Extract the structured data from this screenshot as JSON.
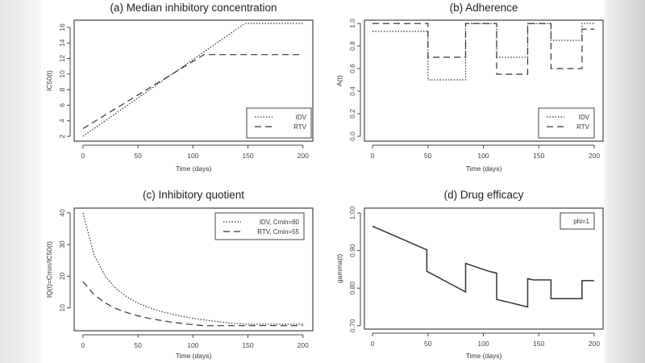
{
  "chart_data": [
    {
      "id": "a",
      "type": "line",
      "title": "(a) Median inhibitory concentration",
      "xlabel": "Time (days)",
      "ylabel": "IC50(t)",
      "xlim": [
        -8,
        209
      ],
      "ylim": [
        1.38,
        16.93
      ],
      "xticks": [
        0,
        50,
        100,
        150,
        200
      ],
      "yticks": [
        2,
        4,
        6,
        8,
        10,
        12,
        14,
        16
      ],
      "ytick_labels": [
        "2",
        "4",
        "6",
        "8",
        "10",
        "12",
        "14",
        "16"
      ],
      "grid": false,
      "legend_placement": "bottom-right",
      "series": [
        {
          "name": "IDV",
          "style": "dotted",
          "x": [
            0,
            147,
            200
          ],
          "y": [
            2,
            16.5,
            16.5
          ]
        },
        {
          "name": "RTV",
          "style": "dashed",
          "x": [
            0,
            110,
            200
          ],
          "y": [
            3,
            12.5,
            12.5
          ]
        }
      ]
    },
    {
      "id": "b",
      "type": "line",
      "title": "(b) Adherence",
      "xlabel": "Time (days)",
      "ylabel": "A(t)",
      "xlim": [
        -7.3,
        208
      ],
      "ylim": [
        -0.043,
        1.029
      ],
      "xticks": [
        0,
        50,
        100,
        150,
        200
      ],
      "yticks": [
        0,
        0.2,
        0.4,
        0.6,
        0.8,
        1.0
      ],
      "ytick_labels": [
        "0.0",
        "0.2",
        "0.4",
        "0.6",
        "0.8",
        "1.0"
      ],
      "grid": false,
      "legend_placement": "bottom-right",
      "series": [
        {
          "name": "IDV",
          "style": "dotted",
          "x": [
            0,
            50,
            50,
            84,
            84,
            112,
            112,
            140,
            140,
            161,
            161,
            189,
            189,
            200
          ],
          "y": [
            0.93,
            0.93,
            0.5,
            0.5,
            1.0,
            1.0,
            0.7,
            0.7,
            1.0,
            1.0,
            0.85,
            0.85,
            1.0,
            1.0
          ]
        },
        {
          "name": "RTV",
          "style": "dashed",
          "x": [
            0,
            50,
            50,
            84,
            84,
            112,
            112,
            140,
            140,
            161,
            161,
            189,
            189,
            200
          ],
          "y": [
            1.0,
            1.0,
            0.7,
            0.7,
            1.0,
            1.0,
            0.55,
            0.55,
            1.0,
            1.0,
            0.6,
            0.6,
            0.95,
            0.95
          ]
        }
      ]
    },
    {
      "id": "c",
      "type": "line",
      "title": "(c) Inhibitory quotient",
      "xlabel": "Time (days)",
      "ylabel": "IQ(t)=Cmin/IC50(t)",
      "xlim": [
        -8,
        209
      ],
      "ylim": [
        2.8,
        41.5
      ],
      "xticks": [
        0,
        50,
        100,
        150,
        200
      ],
      "yticks": [
        10,
        20,
        30,
        40
      ],
      "ytick_labels": [
        "10",
        "20",
        "30",
        "40"
      ],
      "grid": false,
      "legend_placement": "top-right",
      "series": [
        {
          "name": "IDV,  Cmin=80",
          "style": "dotted",
          "x": [
            0,
            10,
            20,
            30,
            40,
            50,
            60,
            70,
            80,
            90,
            100,
            110,
            120,
            130,
            140,
            150,
            200
          ],
          "y": [
            40,
            26.8,
            20.1,
            16.1,
            13.5,
            11.5,
            10.1,
            9.0,
            8.1,
            7.35,
            6.74,
            6.23,
            5.78,
            5.4,
            5.06,
            4.85,
            4.85
          ]
        },
        {
          "name": "RTV, Cmin=55",
          "style": "dashed",
          "x": [
            0,
            10,
            20,
            30,
            40,
            50,
            60,
            70,
            80,
            90,
            100,
            110,
            200
          ],
          "y": [
            18.3,
            14.2,
            11.6,
            9.8,
            8.5,
            7.5,
            6.7,
            6.1,
            5.55,
            5.1,
            4.7,
            4.4,
            4.4
          ]
        }
      ]
    },
    {
      "id": "d",
      "type": "line",
      "title": "(d) Drug efficacy",
      "xlabel": "Time (days)",
      "ylabel": "gamma(t)",
      "xlim": [
        -7.3,
        208
      ],
      "ylim": [
        0.691,
        1.013
      ],
      "xticks": [
        0,
        50,
        100,
        150,
        200
      ],
      "yticks": [
        0.7,
        0.8,
        0.9,
        1.0
      ],
      "ytick_labels": [
        "0.70",
        "0.80",
        "0.90",
        "1.00"
      ],
      "grid": false,
      "legend_placement": "top-right",
      "series": [
        {
          "name": "phi=1",
          "style": "solid",
          "x": [
            0,
            49,
            49,
            84,
            84,
            105,
            112,
            112,
            140,
            140,
            145,
            161,
            161,
            189,
            189,
            200
          ],
          "y": [
            0.965,
            0.902,
            0.845,
            0.79,
            0.866,
            0.845,
            0.84,
            0.77,
            0.75,
            0.825,
            0.822,
            0.822,
            0.772,
            0.772,
            0.82,
            0.82
          ]
        }
      ]
    }
  ]
}
